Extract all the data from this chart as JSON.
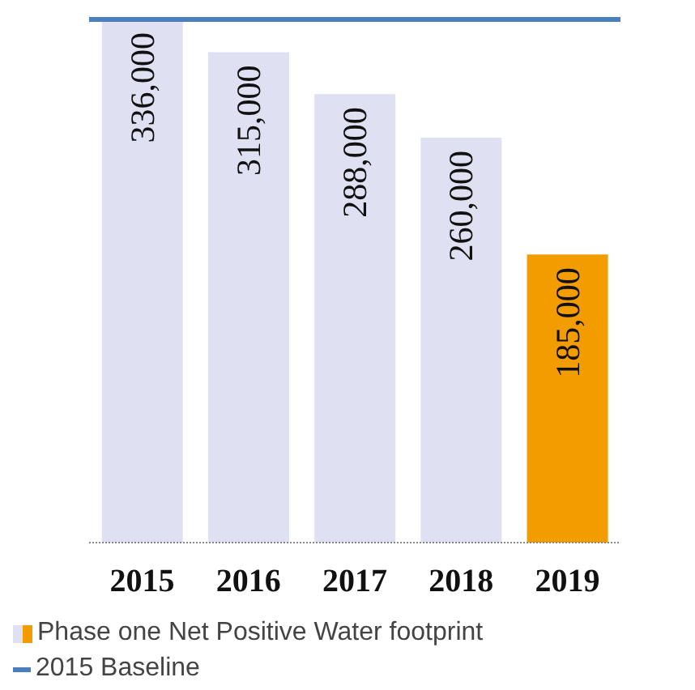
{
  "chart_data": {
    "type": "bar",
    "categories": [
      "2015",
      "2016",
      "2017",
      "2018",
      "2019"
    ],
    "series": [
      {
        "name": "Phase one Net Positive Water footprint",
        "values": [
          336000,
          315000,
          288000,
          260000,
          185000
        ],
        "value_labels": [
          "336,000",
          "315,000",
          "288,000",
          "260,000",
          "185,000"
        ],
        "colors": [
          "#dfe1f3",
          "#dfe1f3",
          "#dfe1f3",
          "#dfe1f3",
          "#f39c00"
        ]
      }
    ],
    "ref_lines": [
      {
        "axis": "y",
        "value": 336000,
        "label": "2015 Baseline",
        "color": "#4a7ebf"
      }
    ],
    "legend": "bottom",
    "tick_labels": "x"
  }
}
